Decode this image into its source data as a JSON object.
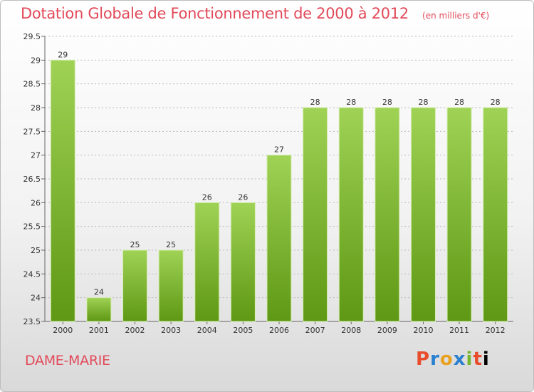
{
  "header": {
    "title": "Dotation Globale de Fonctionnement de 2000 à 2012",
    "subtitle": "(en milliers d'€)"
  },
  "footer": {
    "place": "DAME-MARIE",
    "brand": "Proxiti"
  },
  "colors": {
    "title": "#e24a5a",
    "bar_top": "#9fd255",
    "bar_bottom": "#5e9814",
    "grid": "#bbbbbb"
  },
  "chart_data": {
    "type": "bar",
    "title": "Dotation Globale de Fonctionnement de 2000 à 2012",
    "subtitle": "(en milliers d'€)",
    "xlabel": "",
    "ylabel": "",
    "categories": [
      "2000",
      "2001",
      "2002",
      "2003",
      "2004",
      "2005",
      "2006",
      "2007",
      "2008",
      "2009",
      "2010",
      "2011",
      "2012"
    ],
    "values": [
      29,
      24,
      25,
      25,
      26,
      26,
      27,
      28,
      28,
      28,
      28,
      28,
      28
    ],
    "data_labels": [
      "29",
      "24",
      "25",
      "25",
      "26",
      "26",
      "27",
      "28",
      "28",
      "28",
      "28",
      "28",
      "28"
    ],
    "ylim": [
      23.5,
      29.5
    ],
    "yticks": [
      23.5,
      24,
      24.5,
      25,
      25.5,
      26,
      26.5,
      27,
      27.5,
      28,
      28.5,
      29,
      29.5
    ],
    "ytick_labels": [
      "23.5",
      "24",
      "24.5",
      "25",
      "25.5",
      "26",
      "26.5",
      "27",
      "27.5",
      "28",
      "28.5",
      "29",
      "29.5"
    ],
    "grid": true,
    "legend": "none"
  }
}
